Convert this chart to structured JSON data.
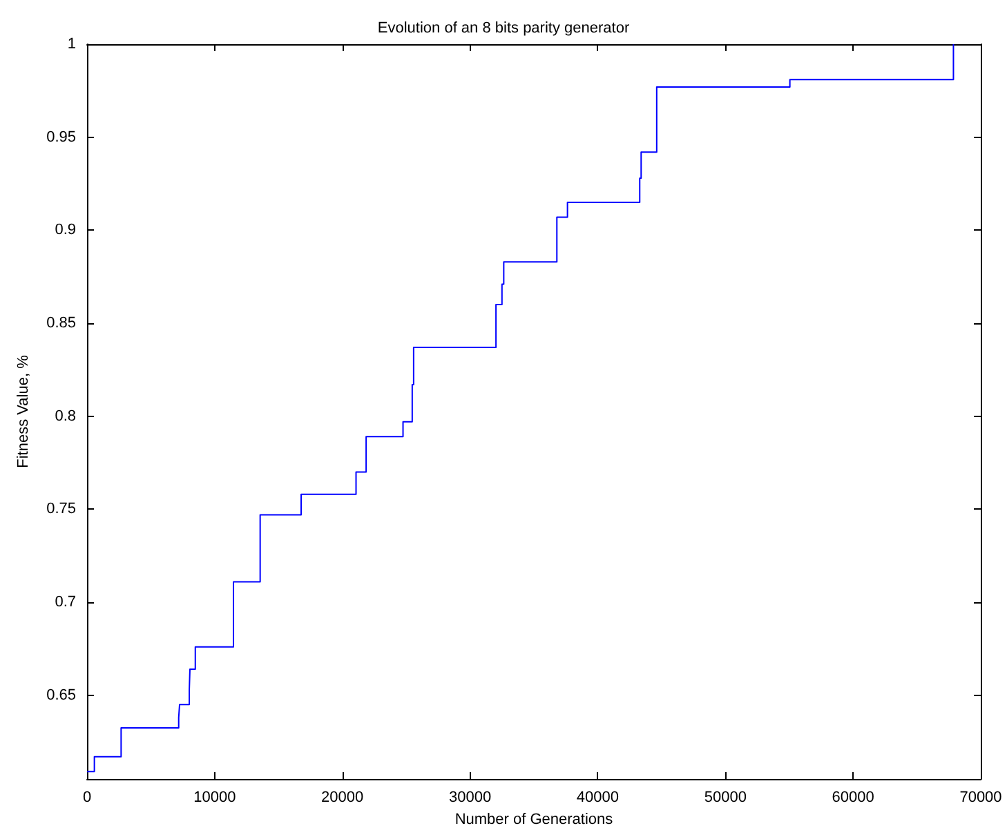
{
  "chart_data": {
    "type": "step",
    "title": "Evolution of an 8 bits parity generator",
    "xlabel": "Number of Generations",
    "ylabel": "Fitness Value, %",
    "series": [
      {
        "color": "#0000ff",
        "x": [
          0,
          575,
          2670,
          7180,
          7250,
          8010,
          8060,
          8480,
          11470,
          13560,
          16770,
          21070,
          21860,
          24750,
          25470,
          25580,
          32030,
          32500,
          32640,
          36800,
          37630,
          43290,
          43400,
          44620,
          55050,
          67860
        ],
        "values": [
          0.609,
          0.617,
          0.6325,
          0.638,
          0.645,
          0.653,
          0.664,
          0.676,
          0.711,
          0.747,
          0.758,
          0.77,
          0.789,
          0.797,
          0.817,
          0.837,
          0.86,
          0.871,
          0.883,
          0.907,
          0.915,
          0.928,
          0.942,
          0.977,
          0.981,
          1.0
        ]
      }
    ],
    "xlim": [
      0,
      70000
    ],
    "xticks": [
      0,
      10000,
      20000,
      30000,
      40000,
      50000,
      60000,
      70000
    ],
    "ylim": [
      0.605,
      1
    ],
    "yticks": [
      0.65,
      0.7,
      0.75,
      0.8,
      0.85,
      0.9,
      0.95,
      1
    ],
    "grid": false,
    "marker": "none",
    "line_style": "solid"
  }
}
